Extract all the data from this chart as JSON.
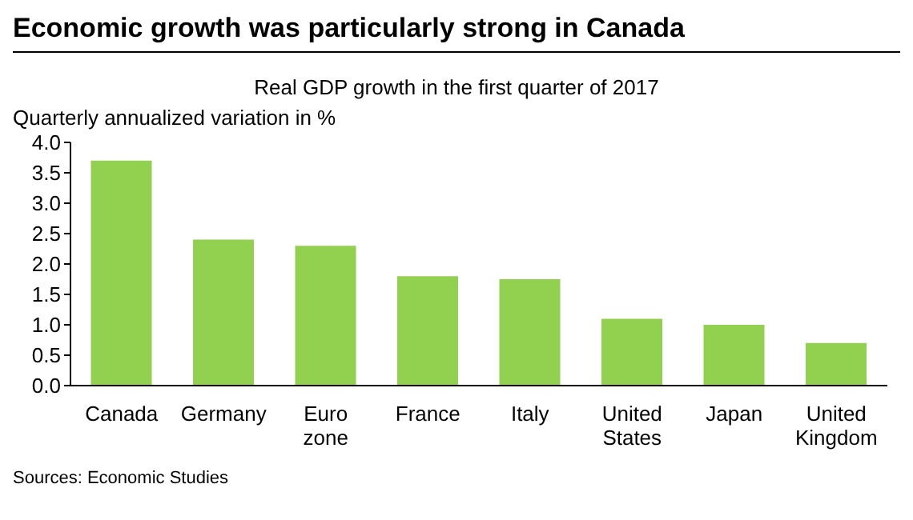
{
  "chart_data": {
    "type": "bar",
    "title": "Economic growth was particularly strong in Canada",
    "subtitle": "Real GDP growth in the first quarter of 2017",
    "ylabel": "Quarterly annualized variation in %",
    "categories": [
      "Canada",
      "Germany",
      "Euro zone",
      "France",
      "Italy",
      "United States",
      "Japan",
      "United Kingdom"
    ],
    "values": [
      3.7,
      2.4,
      2.3,
      1.8,
      1.75,
      1.1,
      1.0,
      0.7
    ],
    "color": "#92d050",
    "ylim": [
      0,
      4
    ],
    "yticks": [
      {
        "value": 0,
        "label": "0.0"
      },
      {
        "value": 0.5,
        "label": "0.5"
      },
      {
        "value": 1,
        "label": "1.0"
      },
      {
        "value": 1.5,
        "label": "1.5"
      },
      {
        "value": 2,
        "label": "2.0"
      },
      {
        "value": 2.5,
        "label": "2.5"
      },
      {
        "value": 3,
        "label": "3.0"
      },
      {
        "value": 3.5,
        "label": "3.5"
      },
      {
        "value": 4,
        "label": "4.0"
      }
    ],
    "grid": false,
    "annotations": [
      "Sources: Economic Studies"
    ]
  }
}
